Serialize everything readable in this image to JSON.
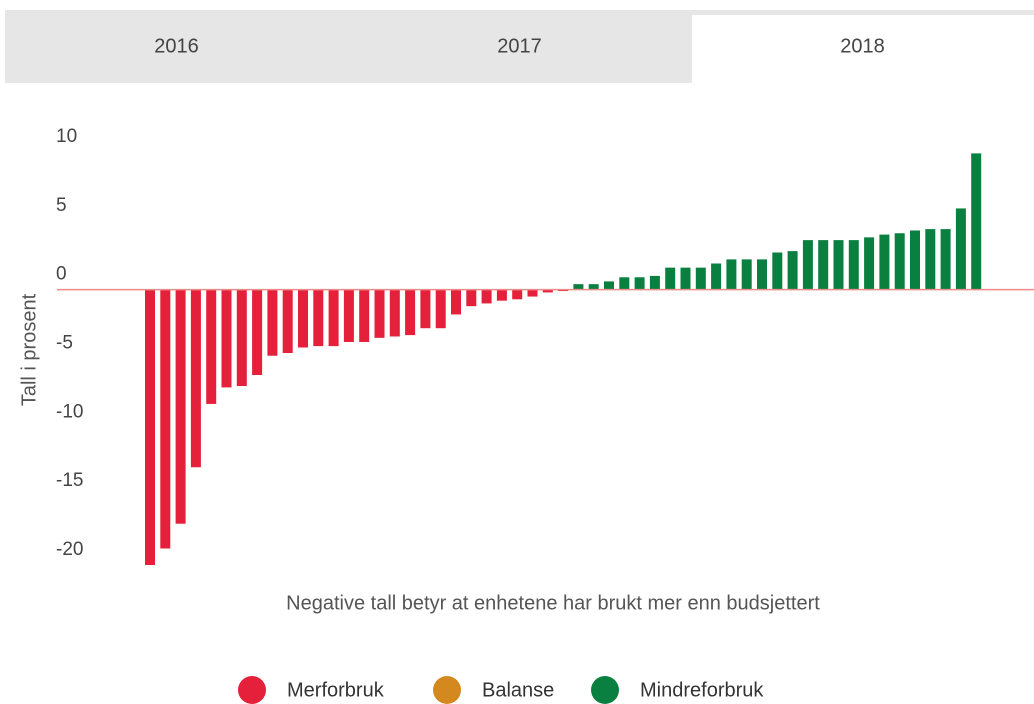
{
  "tabs": [
    "2016",
    "2017",
    "2018"
  ],
  "selected_tab": 2,
  "chart_data": {
    "type": "bar",
    "y_label": "Tall i prosent",
    "caption": "Negative tall betyr at enhetene har brukt mer enn budsjettert",
    "values": [
      -20.0,
      -18.8,
      -17.0,
      -12.9,
      -8.3,
      -7.1,
      -7.0,
      -6.2,
      -4.8,
      -4.6,
      -4.2,
      -4.1,
      -4.1,
      -3.8,
      -3.8,
      -3.5,
      -3.4,
      -3.3,
      -2.8,
      -2.8,
      -1.8,
      -1.2,
      -1.0,
      -0.8,
      -0.7,
      -0.5,
      -0.2,
      -0.1,
      0.4,
      0.4,
      0.6,
      0.9,
      0.9,
      1.0,
      1.6,
      1.6,
      1.6,
      1.9,
      2.2,
      2.2,
      2.2,
      2.7,
      2.8,
      3.6,
      3.6,
      3.6,
      3.6,
      3.8,
      4.0,
      4.1,
      4.3,
      4.4,
      4.4,
      5.9,
      9.9
    ],
    "ylim": [
      -20,
      10
    ],
    "yticks": [
      10,
      5,
      0,
      -5,
      -10,
      -15,
      -20
    ],
    "grid": false,
    "legend": [
      {
        "name": "Merforbruk",
        "color": "#e4203a"
      },
      {
        "name": "Balanse",
        "color": "#d4891f"
      },
      {
        "name": "Mindreforbruk",
        "color": "#0a8040"
      }
    ]
  }
}
